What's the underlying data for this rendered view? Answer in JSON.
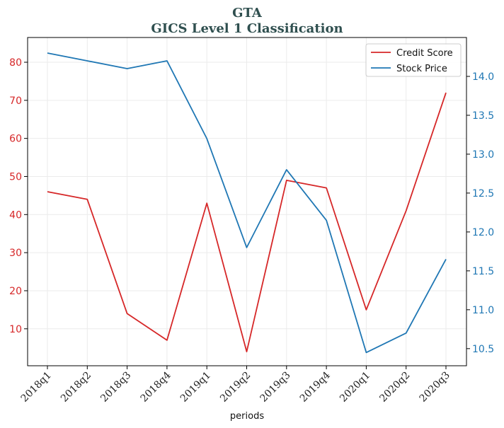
{
  "chart_data": {
    "type": "line",
    "title": "GTA",
    "subtitle": "GICS Level 1 Classification",
    "xlabel": "periods",
    "categories": [
      "2018q1",
      "2018q2",
      "2018q3",
      "2018q4",
      "2019q1",
      "2019q2",
      "2019q3",
      "2019q4",
      "2020q1",
      "2020q2",
      "2020q3"
    ],
    "series": [
      {
        "name": "Credit Score",
        "axis": "left",
        "color": "#d62728",
        "values": [
          46,
          44,
          14,
          7,
          43,
          4,
          49,
          47,
          15,
          41,
          72
        ]
      },
      {
        "name": "Stock Price",
        "axis": "right",
        "color": "#1f77b4",
        "values": [
          14.3,
          14.2,
          14.1,
          14.2,
          13.2,
          11.8,
          12.8,
          12.15,
          10.45,
          10.7,
          11.65
        ]
      }
    ],
    "left_axis": {
      "ylim": [
        0.3,
        86.5
      ],
      "ticks": [
        10,
        20,
        30,
        40,
        50,
        60,
        70,
        80
      ],
      "color": "#d62728"
    },
    "right_axis": {
      "ylim": [
        10.28,
        14.5
      ],
      "ticks": [
        "10.5",
        "11.0",
        "11.5",
        "12.0",
        "12.5",
        "13.0",
        "13.5",
        "14.0"
      ],
      "color": "#1f77b4"
    },
    "grid": true,
    "legend_position": "top-right"
  }
}
